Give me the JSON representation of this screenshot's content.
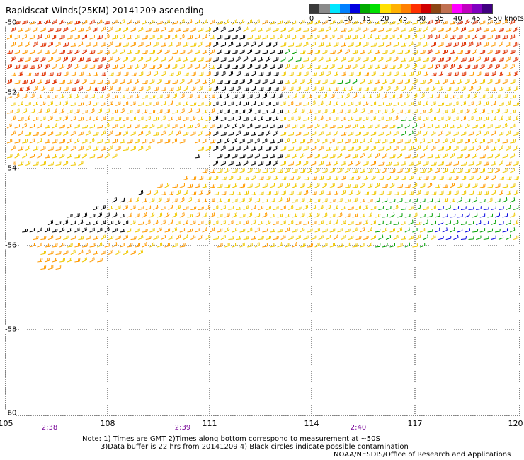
{
  "title": "Rapidscat Winds(25KM) 20141209 ascending",
  "legend": {
    "ticks": [
      "0",
      "5",
      "10",
      "15",
      "20",
      "25",
      "30",
      "35",
      "40",
      "45",
      ">50 knots"
    ],
    "colors": [
      "#3a3a3a",
      "#8a8a8a",
      "#00e6ff",
      "#0080ff",
      "#0000e0",
      "#00aa00",
      "#00e000",
      "#ffe000",
      "#ffb000",
      "#ff8000",
      "#ff3000",
      "#d00000",
      "#8b4513",
      "#c07050",
      "#ff00ff",
      "#c000c0",
      "#8000c0",
      "#400080"
    ]
  },
  "x_axis": {
    "labels": [
      "105",
      "108",
      "111",
      "114",
      "117",
      "120"
    ]
  },
  "y_axis": {
    "labels": [
      "-50",
      "-52",
      "-54",
      "-56",
      "-58",
      "-60"
    ]
  },
  "times": [
    "2:38",
    "2:39",
    "2:40"
  ],
  "notes": {
    "line1": "Note: 1) Times are GMT 2)Times along bottom correspond to measurement at ~50S",
    "line2": "3)Data buffer is 22 hrs from 20141209 4) Black circles indicate possible contamination"
  },
  "credit": "NOAA/NESDIS/Office of Research and Applications",
  "colors": {
    "black": "#000000",
    "green": "#00a000",
    "blue": "#0000e0",
    "yellow": "#f0c800",
    "orange": "#ff9a00",
    "red": "#e03000"
  }
}
